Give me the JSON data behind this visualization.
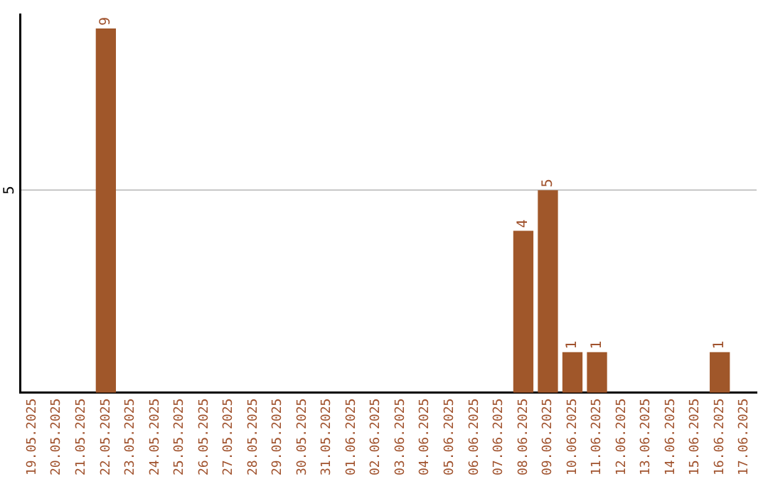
{
  "chart_data": {
    "type": "bar",
    "categories": [
      "19.05.2025",
      "20.05.2025",
      "21.05.2025",
      "22.05.2025",
      "23.05.2025",
      "24.05.2025",
      "25.05.2025",
      "26.05.2025",
      "27.05.2025",
      "28.05.2025",
      "29.05.2025",
      "30.05.2025",
      "31.05.2025",
      "01.06.2025",
      "02.06.2025",
      "03.06.2025",
      "04.06.2025",
      "05.06.2025",
      "06.06.2025",
      "07.06.2025",
      "08.06.2025",
      "09.06.2025",
      "10.06.2025",
      "11.06.2025",
      "12.06.2025",
      "13.06.2025",
      "14.06.2025",
      "15.06.2025",
      "16.06.2025",
      "17.06.2025"
    ],
    "values": [
      0,
      0,
      0,
      9,
      0,
      0,
      0,
      0,
      0,
      0,
      0,
      0,
      0,
      0,
      0,
      0,
      0,
      0,
      0,
      0,
      4,
      5,
      1,
      1,
      0,
      0,
      0,
      0,
      1,
      0
    ],
    "color": "#a0572a",
    "ylim": [
      0,
      9.35
    ],
    "yticks": [
      5
    ],
    "grid": "y",
    "legend": false,
    "value_labels": [
      null,
      null,
      null,
      "9",
      null,
      null,
      null,
      null,
      null,
      null,
      null,
      null,
      null,
      null,
      null,
      null,
      null,
      null,
      null,
      null,
      "4",
      "5",
      "1",
      "1",
      null,
      null,
      null,
      null,
      "1",
      null
    ]
  }
}
